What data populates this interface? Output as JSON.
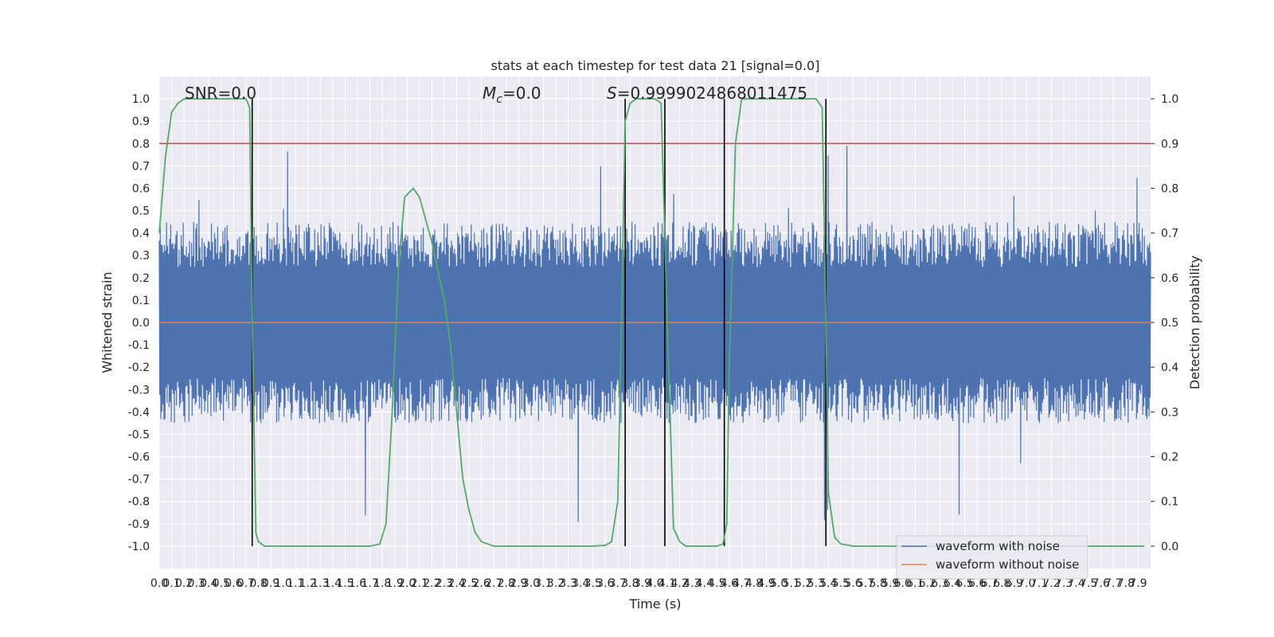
{
  "chart_data": {
    "type": "line",
    "title": "stats at each timestep for test data 21 [signal=0.0]",
    "xlabel": "Time (s)",
    "ylabel_left": "Whitened strain",
    "ylabel_right": "Detection probability",
    "xlim": [
      0.0,
      8.0
    ],
    "ylim_left": [
      -1.1,
      1.1
    ],
    "ylim_right": [
      -0.05,
      1.05
    ],
    "x_ticks": [
      "0.0",
      "0.1",
      "0.2",
      "0.3",
      "0.4",
      "0.5",
      "0.6",
      "0.7",
      "0.8",
      "0.9",
      "1.0",
      "1.1",
      "1.2",
      "1.3",
      "1.4",
      "1.5",
      "1.6",
      "1.7",
      "1.8",
      "1.9",
      "2.0",
      "2.1",
      "2.2",
      "2.3",
      "2.4",
      "2.5",
      "2.6",
      "2.7",
      "2.8",
      "2.9",
      "3.0",
      "3.1",
      "3.2",
      "3.3",
      "3.4",
      "3.5",
      "3.6",
      "3.7",
      "3.8",
      "3.9",
      "4.0",
      "4.1",
      "4.2",
      "4.3",
      "4.4",
      "4.5",
      "4.6",
      "4.7",
      "4.8",
      "4.9",
      "5.0",
      "5.1",
      "5.2",
      "5.3",
      "5.4",
      "5.5",
      "5.6",
      "5.7",
      "5.8",
      "5.9",
      "6.0",
      "6.1",
      "6.2",
      "6.3",
      "6.4",
      "6.5",
      "6.6",
      "6.7",
      "6.8",
      "6.9",
      "7.0",
      "7.1",
      "7.2",
      "7.3",
      "7.4",
      "7.5",
      "7.6",
      "7.7",
      "7.8",
      "7.9"
    ],
    "y_ticks_left": [
      "-1.0",
      "-0.9",
      "-0.8",
      "-0.7",
      "-0.6",
      "-0.5",
      "-0.4",
      "-0.3",
      "-0.2",
      "-0.1",
      "0.0",
      "0.1",
      "0.2",
      "0.3",
      "0.4",
      "0.5",
      "0.6",
      "0.7",
      "0.8",
      "0.9",
      "1.0"
    ],
    "y_ticks_right": [
      "0.0",
      "0.1",
      "0.2",
      "0.3",
      "0.4",
      "0.5",
      "0.6",
      "0.7",
      "0.8",
      "0.9",
      "1.0"
    ],
    "grid": true,
    "legend_position": "lower-right",
    "annotations": {
      "snr": "SNR=0.0",
      "mc_prefix": "M",
      "mc_sub": "c",
      "mc_suffix": "=0.0",
      "s_prefix": "S",
      "s_suffix": "=0.9999024868011475"
    },
    "series": [
      {
        "name": "waveform with noise",
        "axis": "left",
        "color": "#4c72b0",
        "noise_envelope": {
          "typical_max": 0.45,
          "typical_min": -0.45,
          "peak_max": 0.9,
          "peak_min": -0.98
        }
      },
      {
        "name": "waveform without noise",
        "axis": "left",
        "color": "#dd8452",
        "values_constant": 0.0
      },
      {
        "name": "",
        "axis": "right",
        "color": "#55a868",
        "x": [
          0.0,
          0.05,
          0.1,
          0.15,
          0.2,
          0.3,
          0.4,
          0.5,
          0.6,
          0.7,
          0.73,
          0.75,
          0.78,
          0.8,
          0.85,
          0.9,
          1.0,
          1.2,
          1.4,
          1.6,
          1.7,
          1.78,
          1.83,
          1.88,
          1.93,
          1.98,
          2.05,
          2.1,
          2.2,
          2.3,
          2.35,
          2.4,
          2.45,
          2.5,
          2.55,
          2.6,
          2.7,
          3.0,
          3.3,
          3.5,
          3.6,
          3.65,
          3.7,
          3.73,
          3.76,
          3.8,
          3.85,
          3.9,
          4.0,
          4.05,
          4.1,
          4.15,
          4.2,
          4.25,
          4.3,
          4.4,
          4.5,
          4.55,
          4.58,
          4.6,
          4.65,
          4.7,
          4.8,
          5.0,
          5.2,
          5.3,
          5.35,
          5.38,
          5.4,
          5.45,
          5.5,
          5.6,
          5.8,
          6.0,
          6.5,
          7.0,
          7.5,
          7.95
        ],
        "values": [
          0.7,
          0.87,
          0.97,
          0.99,
          1.0,
          1.0,
          1.0,
          1.0,
          1.0,
          1.0,
          0.98,
          0.5,
          0.03,
          0.01,
          0.0,
          0.0,
          0.0,
          0.0,
          0.0,
          0.0,
          0.0,
          0.005,
          0.05,
          0.3,
          0.62,
          0.78,
          0.8,
          0.78,
          0.68,
          0.55,
          0.45,
          0.3,
          0.15,
          0.08,
          0.03,
          0.01,
          0.0,
          0.0,
          0.0,
          0.0,
          0.002,
          0.01,
          0.1,
          0.5,
          0.95,
          0.99,
          1.0,
          1.0,
          1.0,
          0.99,
          0.5,
          0.04,
          0.01,
          0.0,
          0.0,
          0.0,
          0.0,
          0.005,
          0.05,
          0.4,
          0.9,
          1.0,
          1.0,
          1.0,
          1.0,
          1.0,
          0.98,
          0.5,
          0.12,
          0.02,
          0.005,
          0.0,
          0.0,
          0.0,
          0.0,
          0.0,
          0.0,
          0.0
        ]
      },
      {
        "name": "",
        "axis": "left",
        "color": "#c44e52",
        "values_constant": 0.8
      }
    ],
    "vertical_markers": [
      0.75,
      3.76,
      4.08,
      4.56,
      5.38
    ]
  }
}
